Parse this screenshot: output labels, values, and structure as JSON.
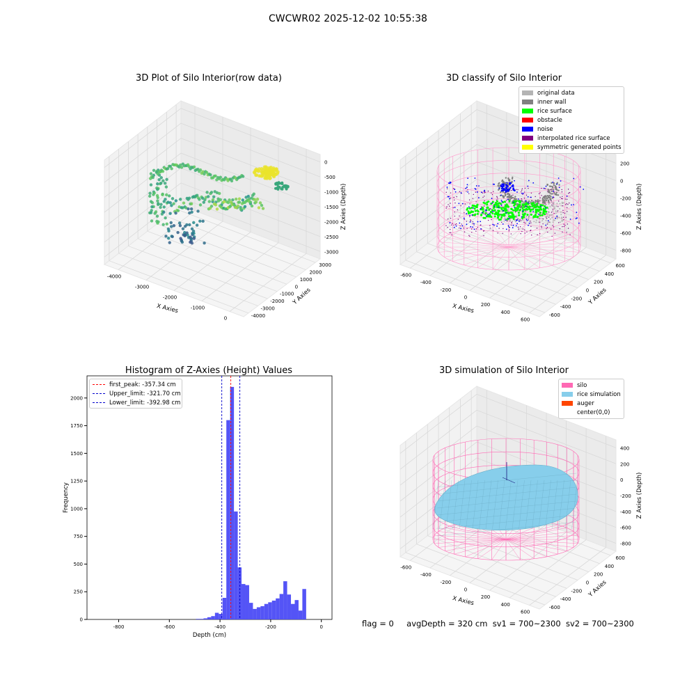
{
  "figure": {
    "suptitle": "CWCWR02 2025-12-02 10:55:38"
  },
  "chart_data": [
    {
      "type": "scatter",
      "projection": "3d",
      "title": "3D Plot of Silo Interior(row data)",
      "xlabel": "X Axies",
      "ylabel": "Y Axies",
      "zlabel": "Z Axies (Depth)",
      "xticks": [
        "-4000",
        "-3000",
        "-2000",
        "-1000",
        "0"
      ],
      "yticks": [
        "-4000",
        "-3000",
        "-2000",
        "-1000",
        "0",
        "1000",
        "2000",
        "3000"
      ],
      "zticks": [
        "-3000",
        "-2500",
        "-2000",
        "-1500",
        "-1000",
        "-500",
        "0"
      ],
      "xlim": [
        -4500,
        500
      ],
      "ylim": [
        -4200,
        3500
      ],
      "zlim": [
        -3200,
        200
      ],
      "colormap": "viridis (colored by depth)",
      "grid": true
    },
    {
      "type": "scatter",
      "projection": "3d",
      "title": "3D classify of Silo Interior",
      "xlabel": "X Axies",
      "ylabel": "Y Axies",
      "zlabel": "Z Axies (Depth)",
      "xticks": [
        "-600",
        "-400",
        "-200",
        "0",
        "200",
        "400",
        "600"
      ],
      "yticks": [
        "-600",
        "-400",
        "-200",
        "0",
        "200",
        "400",
        "600"
      ],
      "zticks": [
        "-800",
        "-600",
        "-400",
        "-200",
        "0",
        "200"
      ],
      "legend_position": "top-right",
      "legend": [
        {
          "label": "original data",
          "color": "#b4b4b4"
        },
        {
          "label": "inner wall",
          "color": "#808080"
        },
        {
          "label": "rice surface",
          "color": "#00ff00"
        },
        {
          "label": "obstacle",
          "color": "#ff0000"
        },
        {
          "label": "noise",
          "color": "#0000ff"
        },
        {
          "label": "interpolated rice surface",
          "color": "#800080"
        },
        {
          "label": "symmetric generated points",
          "color": "#ffff00"
        }
      ],
      "silo_wireframe_color": "#ff99cc",
      "grid": true
    },
    {
      "type": "bar",
      "title": "Histogram of Z-Axies (Height) Values",
      "xlabel": "Depth (cm)",
      "ylabel": "Frequency",
      "xticks": [
        -800,
        -600,
        -400,
        -200,
        0
      ],
      "yticks": [
        0,
        250,
        500,
        750,
        1000,
        1250,
        1500,
        1750,
        2000
      ],
      "xlim": [
        -925,
        42
      ],
      "ylim": [
        0,
        2200
      ],
      "bin_width": 15,
      "bins": [
        [
          -495,
          5
        ],
        [
          -480,
          5
        ],
        [
          -465,
          10
        ],
        [
          -450,
          20
        ],
        [
          -435,
          30
        ],
        [
          -420,
          60
        ],
        [
          -405,
          50
        ],
        [
          -390,
          195
        ],
        [
          -375,
          1800
        ],
        [
          -360,
          2100
        ],
        [
          -345,
          975
        ],
        [
          -330,
          470
        ],
        [
          -315,
          320
        ],
        [
          -300,
          310
        ],
        [
          -285,
          150
        ],
        [
          -270,
          95
        ],
        [
          -255,
          110
        ],
        [
          -240,
          120
        ],
        [
          -225,
          140
        ],
        [
          -210,
          155
        ],
        [
          -195,
          170
        ],
        [
          -180,
          190
        ],
        [
          -165,
          230
        ],
        [
          -150,
          345
        ],
        [
          -135,
          225
        ],
        [
          -120,
          140
        ],
        [
          -105,
          175
        ],
        [
          -90,
          80
        ],
        [
          -75,
          275
        ]
      ],
      "bar_color": "#4b4bf5",
      "vlines": [
        {
          "label": "first_peak: -357.34 cm",
          "x": -357.34,
          "color": "#ff0000"
        },
        {
          "label": "Upper_limit: -321.70 cm",
          "x": -321.7,
          "color": "#0000cc"
        },
        {
          "label": "Lower_limit: -392.98 cm",
          "x": -392.98,
          "color": "#0000cc"
        }
      ],
      "legend_position": "top-left"
    },
    {
      "type": "scatter",
      "projection": "3d",
      "title": "3D simulation of Silo Interior",
      "xlabel": "X Axies",
      "ylabel": "Y Axies",
      "zlabel": "Z Axies (Depth)",
      "xticks": [
        "-600",
        "-400",
        "-200",
        "0",
        "200",
        "400",
        "600"
      ],
      "yticks": [
        "-600",
        "-400",
        "-200",
        "0",
        "200",
        "400",
        "600"
      ],
      "zticks": [
        "-800",
        "-600",
        "-400",
        "-200",
        "0",
        "200",
        "400"
      ],
      "legend_position": "top-right",
      "legend": [
        {
          "label": "silo",
          "color": "#ff69b4"
        },
        {
          "label": "rice simulation",
          "color": "#87ceeb"
        },
        {
          "label": "auger",
          "color": "#ff4500"
        },
        {
          "label": "center(0,0)",
          "color": ""
        }
      ],
      "grid": true
    }
  ],
  "footer": {
    "flag": "flag = 0",
    "avg_depth": "avgDepth = 320 cm",
    "sv1": "sv1 = 700~2300",
    "sv2": "sv2 = 700~2300"
  }
}
